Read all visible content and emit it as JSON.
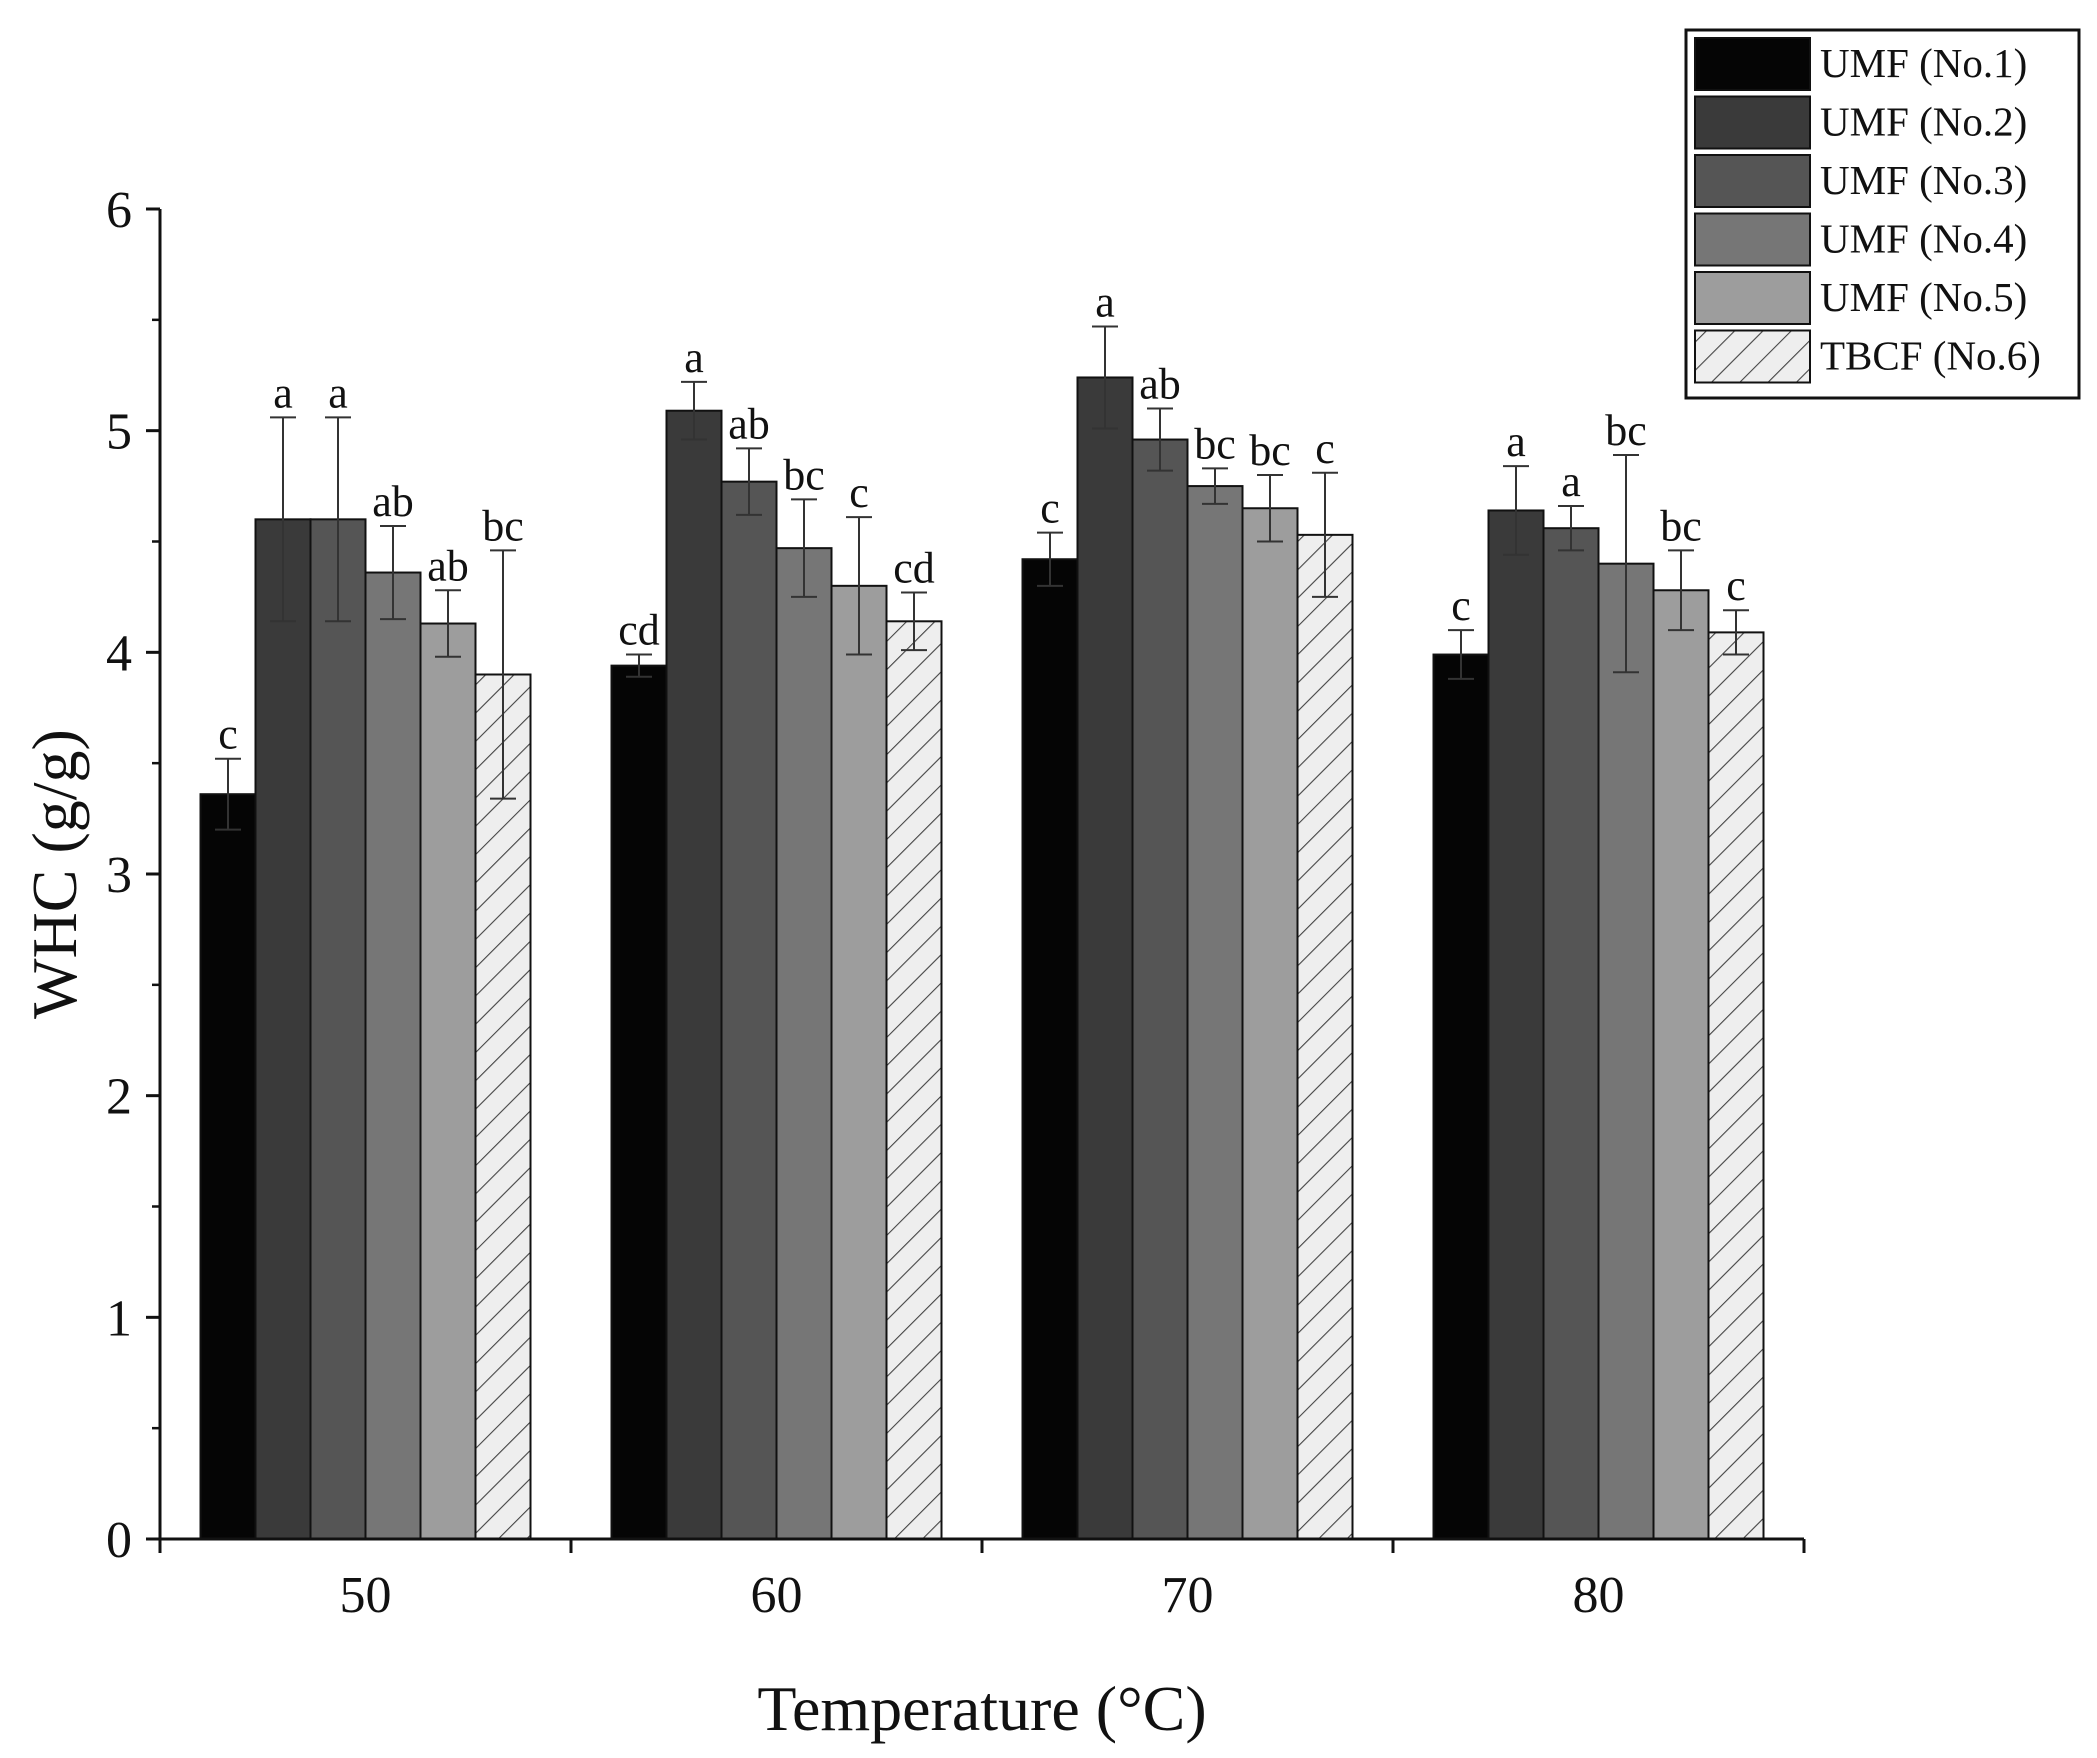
{
  "chart_data": {
    "type": "bar",
    "title": "",
    "xlabel": "Temperature (°C)",
    "ylabel": "WHC (g/g)",
    "ylim": [
      0,
      6
    ],
    "yticks": [
      "0",
      "1",
      "2",
      "3",
      "4",
      "5",
      "6"
    ],
    "grid": false,
    "legend_position": "top-right",
    "categories": [
      "50",
      "60",
      "70",
      "80"
    ],
    "series": [
      {
        "name": "UMF (No.1)",
        "color": "#050505",
        "pattern": "solid",
        "values": [
          3.36,
          3.94,
          4.42,
          3.99
        ],
        "errors": [
          0.16,
          0.05,
          0.12,
          0.11
        ],
        "labels": [
          "c",
          "cd",
          "c",
          "c"
        ]
      },
      {
        "name": "UMF (No.2)",
        "color": "#3a3a3a",
        "pattern": "solid",
        "values": [
          4.6,
          5.09,
          5.24,
          4.64
        ],
        "errors": [
          0.46,
          0.13,
          0.23,
          0.2
        ],
        "labels": [
          "a",
          "a",
          "a",
          "a"
        ]
      },
      {
        "name": "UMF (No.3)",
        "color": "#555555",
        "pattern": "solid",
        "values": [
          4.6,
          4.77,
          4.96,
          4.56
        ],
        "errors": [
          0.46,
          0.15,
          0.14,
          0.1
        ],
        "labels": [
          "a",
          "ab",
          "ab",
          "a"
        ]
      },
      {
        "name": "UMF (No.4)",
        "color": "#767676",
        "pattern": "solid",
        "values": [
          4.36,
          4.47,
          4.75,
          4.4
        ],
        "errors": [
          0.21,
          0.22,
          0.08,
          0.49
        ],
        "labels": [
          "ab",
          "bc",
          "bc",
          "bc"
        ]
      },
      {
        "name": "UMF (No.5)",
        "color": "#9d9d9d",
        "pattern": "solid",
        "values": [
          4.13,
          4.3,
          4.65,
          4.28
        ],
        "errors": [
          0.15,
          0.31,
          0.15,
          0.18
        ],
        "labels": [
          "ab",
          "c",
          "bc",
          "bc"
        ]
      },
      {
        "name": "TBCF (No.6)",
        "color": "#eeeeee",
        "pattern": "hatch",
        "values": [
          3.9,
          4.14,
          4.53,
          4.09
        ],
        "errors": [
          0.56,
          0.13,
          0.28,
          0.1
        ],
        "labels": [
          "bc",
          "cd",
          "c",
          "c"
        ]
      }
    ]
  }
}
